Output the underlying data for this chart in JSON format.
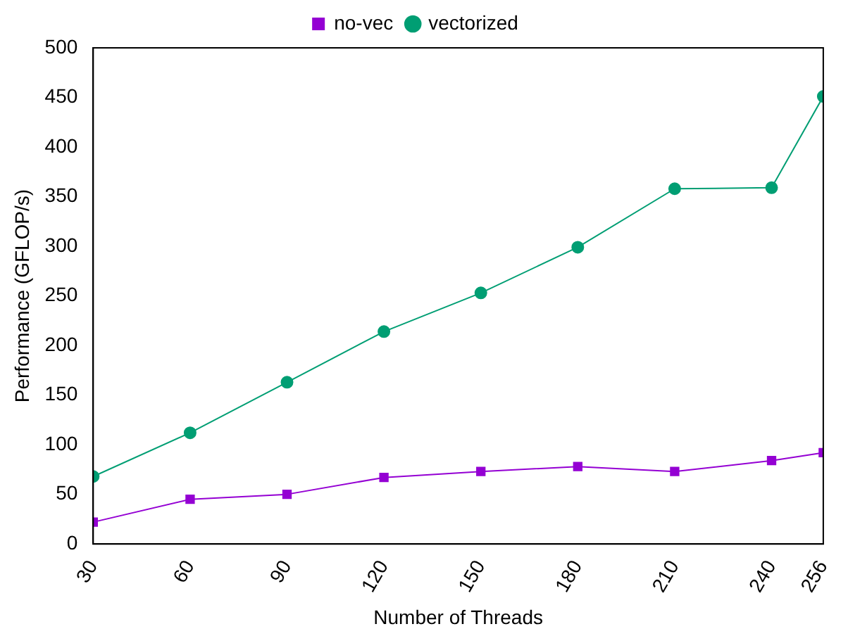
{
  "chart_data": {
    "type": "line",
    "xlabel": "Number of Threads",
    "ylabel": "Performance (GFLOP/s)",
    "x": [
      30,
      60,
      90,
      120,
      150,
      180,
      210,
      240,
      256
    ],
    "series": [
      {
        "name": "no-vec",
        "color": "#9400d3",
        "marker": "square",
        "values": [
          22,
          45,
          50,
          67,
          73,
          78,
          73,
          84,
          92
        ]
      },
      {
        "name": "vectorized",
        "color": "#009e73",
        "marker": "circle",
        "values": [
          68,
          112,
          163,
          214,
          253,
          299,
          358,
          359,
          451
        ]
      }
    ],
    "xlim": [
      30,
      256
    ],
    "xticks": [
      30,
      60,
      90,
      120,
      150,
      180,
      210,
      240,
      256
    ],
    "ylim": [
      0,
      500
    ],
    "yticks": [
      0,
      50,
      100,
      150,
      200,
      250,
      300,
      350,
      400,
      450,
      500
    ],
    "grid": false,
    "legend": "top",
    "line_style": "solid"
  }
}
